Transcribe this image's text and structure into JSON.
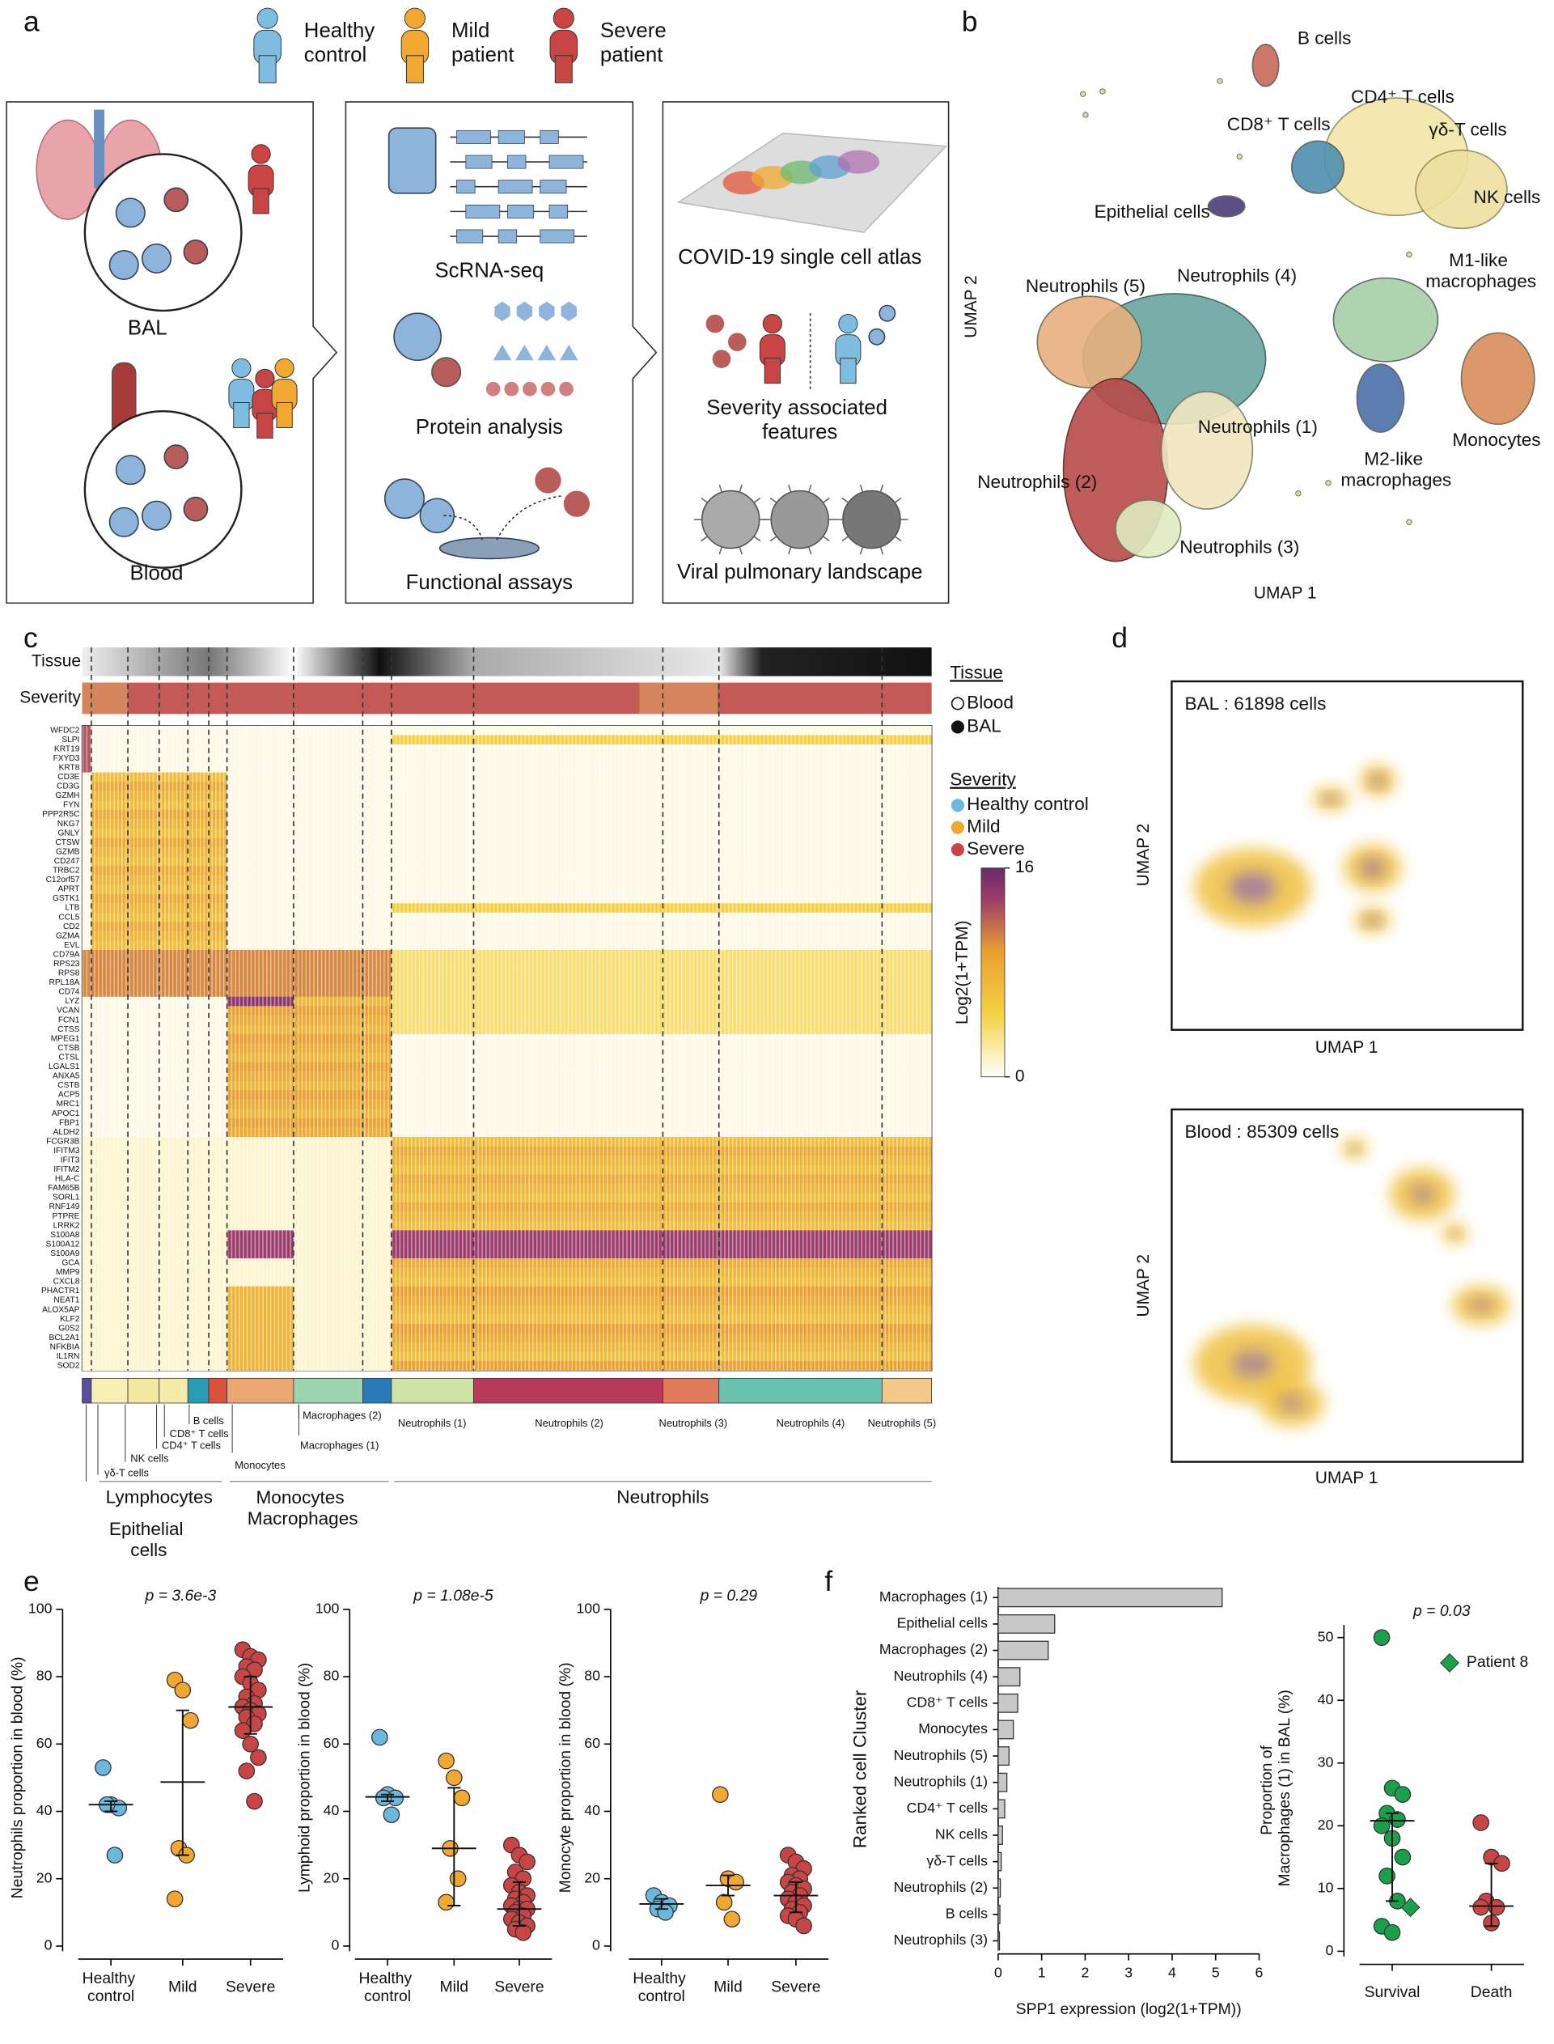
{
  "panel_labels": [
    "a",
    "b",
    "c",
    "d",
    "e",
    "f"
  ],
  "panel_a": {
    "legend": [
      "Healthy control",
      "Mild patient",
      "Severe patient"
    ],
    "steps": [
      "BAL",
      "Blood",
      "ScRNA-seq",
      "Protein analysis",
      "Functional assays",
      "COVID-19 single cell atlas",
      "Severity associated features",
      "Viral pulmonary landscape"
    ]
  },
  "panel_b": {
    "clusters": [
      "B cells",
      "CD4⁺ T cells",
      "CD8⁺ T cells",
      "γδ-T cells",
      "NK cells",
      "Epithelial cells",
      "M1-like macrophages",
      "Neutrophils (5)",
      "Neutrophils (4)",
      "Neutrophils (1)",
      "Monocytes",
      "M2-like macrophages",
      "Neutrophils (2)",
      "Neutrophils (3)"
    ],
    "xlabel": "UMAP 1",
    "ylabel": "UMAP 2"
  },
  "panel_c": {
    "tracks": [
      "Tissue",
      "Severity"
    ],
    "genes": [
      "WFDC2",
      "SLPI",
      "KRT19",
      "FXYD3",
      "KRT8",
      "CD3E",
      "CD3G",
      "GZMH",
      "FYN",
      "PPP2R5C",
      "NKG7",
      "GNLY",
      "CTSW",
      "GZMB",
      "CD247",
      "TRBC2",
      "C12orf57",
      "APRT",
      "GSTK1",
      "LTB",
      "CCL5",
      "CD2",
      "GZMA",
      "EVL",
      "CD79A",
      "RPS23",
      "RPS8",
      "RPL18A",
      "CD74",
      "LYZ",
      "VCAN",
      "FCN1",
      "CTSS",
      "MPEG1",
      "CTSB",
      "CTSL",
      "LGALS1",
      "ANXA5",
      "CSTB",
      "ACP5",
      "MRC1",
      "APOC1",
      "FBP1",
      "ALDH2",
      "FCGR3B",
      "IFITM3",
      "IFIT3",
      "IFITM2",
      "HLA-C",
      "FAM65B",
      "SORL1",
      "RNF149",
      "PTPRE",
      "LRRK2",
      "S100A8",
      "S100A12",
      "S100A9",
      "GCA",
      "MMP9",
      "CXCL8",
      "PHACTR1",
      "NEAT1",
      "ALOX5AP",
      "KLF2",
      "G0S2",
      "BCL2A1",
      "NFKBIA",
      "IL1RN",
      "SOD2"
    ],
    "legend": {
      "tissue_title": "Tissue",
      "tissue": [
        "Blood",
        "BAL"
      ],
      "severity_title": "Severity",
      "severity": [
        "Healthy control",
        "Mild",
        "Severe"
      ]
    },
    "colorbar": {
      "title": "Log2(1+TPM)",
      "lim": [
        0,
        16
      ],
      "ticks": [
        0,
        16
      ]
    },
    "clusters": [
      "γδ-T cells",
      "NK cells",
      "CD4⁺ T cells",
      "CD8⁺ T cells",
      "B cells",
      "Monocytes",
      "Macrophages (2)",
      "Macrophages (1)",
      "Neutrophils (1)",
      "Neutrophils (2)",
      "Neutrophils (3)",
      "Neutrophils (4)",
      "Neutrophils (5)"
    ],
    "groups": [
      "Lymphocytes",
      "Epithelial cells",
      "Monocytes Macrophages",
      "Neutrophils"
    ]
  },
  "panel_d": {
    "bal": "BAL : 61898 cells",
    "blood": "Blood : 85309 cells",
    "xlabel": "UMAP 1",
    "ylabel": "UMAP 2"
  },
  "chart_data": [
    {
      "type": "strip",
      "ylabel": "Neutrophils proportion in blood (%)",
      "annotation": "p = 3.6e-3",
      "categories": [
        "Healthy control",
        "Mild",
        "Severe"
      ],
      "colors": [
        "#6bb8de",
        "#f0a830",
        "#c94545"
      ],
      "values": [
        [
          53,
          42,
          41,
          42,
          27
        ],
        [
          79,
          76,
          67,
          29,
          27,
          14
        ],
        [
          88,
          86,
          85,
          83,
          82,
          80,
          78,
          76,
          74,
          72,
          71,
          70,
          69,
          68,
          66,
          64,
          60,
          56,
          52,
          43
        ]
      ],
      "center": [
        42,
        48.7,
        71
      ],
      "whiskers": [
        [
          40,
          43
        ],
        [
          27,
          70
        ],
        [
          63,
          80
        ]
      ],
      "ylim": [
        0,
        100
      ],
      "yticks": [
        0,
        20,
        40,
        60,
        80,
        100
      ]
    },
    {
      "type": "strip",
      "ylabel": "Lymphoid proportion in blood (%)",
      "annotation": "p = 1.08e-5",
      "categories": [
        "Healthy control",
        "Mild",
        "Severe"
      ],
      "colors": [
        "#6bb8de",
        "#f0a830",
        "#c94545"
      ],
      "values": [
        [
          62,
          45,
          44,
          44,
          39
        ],
        [
          55,
          50,
          44,
          29,
          20,
          13
        ],
        [
          30,
          27,
          25,
          22,
          20,
          18,
          16,
          15,
          14,
          13,
          12,
          11,
          11,
          10,
          9,
          8,
          7,
          6,
          5,
          4
        ]
      ],
      "center": [
        44.3,
        29,
        11
      ],
      "whiskers": [
        [
          43,
          45
        ],
        [
          12,
          47
        ],
        [
          6,
          19
        ]
      ],
      "ylim": [
        0,
        100
      ],
      "yticks": [
        0,
        20,
        40,
        60,
        80,
        100
      ]
    },
    {
      "type": "strip",
      "ylabel": "Monocyte proportion in blood (%)",
      "annotation": "p = 0.29",
      "categories": [
        "Healthy control",
        "Mild",
        "Severe"
      ],
      "colors": [
        "#6bb8de",
        "#f0a830",
        "#c94545"
      ],
      "values": [
        [
          15,
          13,
          12,
          11,
          10
        ],
        [
          45,
          20,
          19,
          13,
          8
        ],
        [
          27,
          25,
          23,
          21,
          20,
          19,
          18,
          17,
          16,
          15,
          14,
          13,
          12,
          11,
          10,
          9,
          8,
          6
        ]
      ],
      "center": [
        12.5,
        18,
        15
      ],
      "whiskers": [
        [
          11,
          14
        ],
        [
          15,
          21
        ],
        [
          10,
          19
        ]
      ],
      "ylim": [
        0,
        100
      ],
      "yticks": [
        0,
        20,
        40,
        60,
        80,
        100
      ]
    },
    {
      "type": "bar",
      "orientation": "horizontal",
      "xlabel": "SPP1 expression (log2(1+TPM))",
      "ylabel": "Ranked cell Cluster",
      "color": "#c8c8c8",
      "categories": [
        "Macrophages (1)",
        "Epithelial cells",
        "Macrophages (2)",
        "Neutrophils (4)",
        "CD8⁺ T cells",
        "Monocytes",
        "Neutrophils (5)",
        "Neutrophils (1)",
        "CD4⁺ T cells",
        "NK cells",
        "γδ-T cells",
        "Neutrophils (2)",
        "B cells",
        "Neutrophils (3)"
      ],
      "values": [
        5.15,
        1.3,
        1.15,
        0.5,
        0.45,
        0.35,
        0.25,
        0.2,
        0.15,
        0.1,
        0.07,
        0.05,
        0.04,
        0.03
      ],
      "xlim": [
        0,
        6
      ],
      "xticks": [
        0,
        1,
        2,
        3,
        4,
        5,
        6
      ]
    },
    {
      "type": "strip",
      "ylabel": "Proportion of Macrophages (1) in BAL (%)",
      "annotation": "p = 0.03",
      "categories": [
        "Survival",
        "Death"
      ],
      "colors": [
        "#1aa04a",
        "#c94545"
      ],
      "values": [
        [
          50,
          26,
          25,
          22,
          21,
          20,
          18,
          15,
          12,
          8,
          4,
          3
        ],
        [
          20.5,
          15,
          14,
          8,
          7,
          7,
          4.5
        ]
      ],
      "center": [
        20.8,
        7.2
      ],
      "whiskers": [
        [
          8,
          22
        ],
        [
          4,
          14
        ]
      ],
      "highlight": {
        "name": "Patient 8",
        "values": [
          7,
          null
        ],
        "color": "#1aa04a"
      },
      "ylim": [
        0,
        52
      ],
      "yticks": [
        0,
        10,
        20,
        30,
        40,
        50
      ]
    }
  ]
}
